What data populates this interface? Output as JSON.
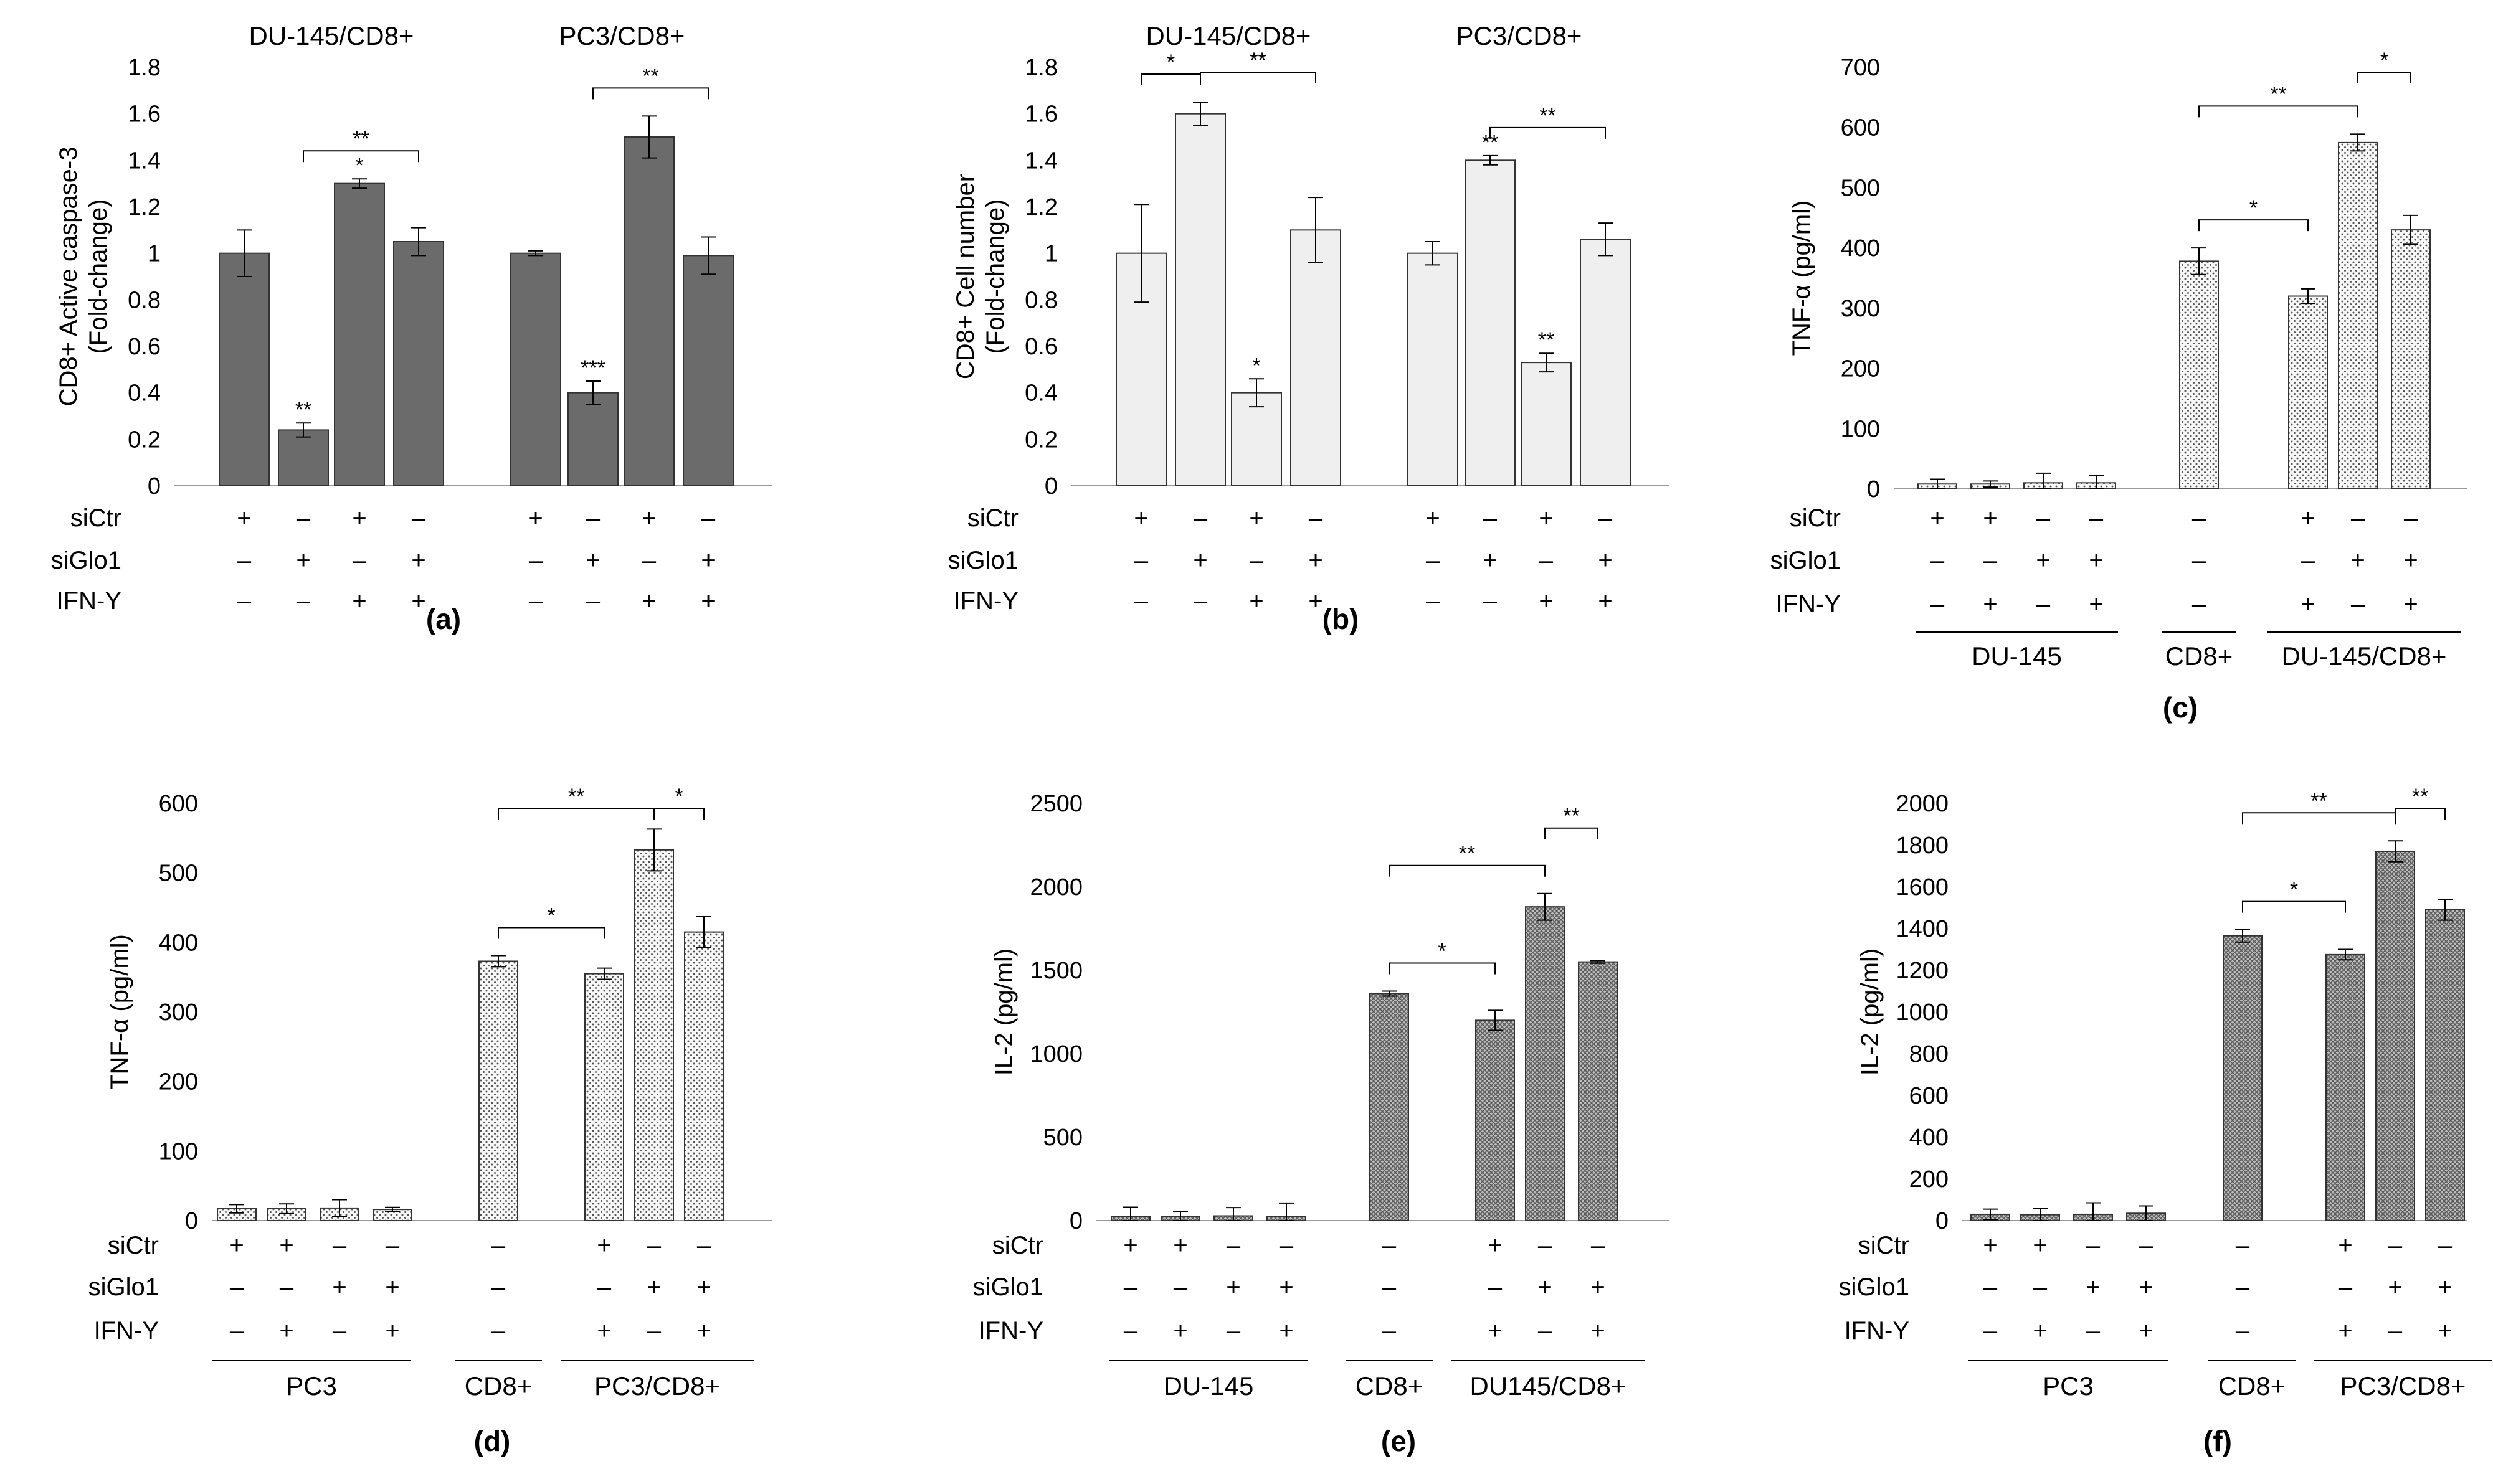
{
  "figure": {
    "panel_labels": [
      "(a)",
      "(b)",
      "(c)",
      "(d)",
      "(e)",
      "(f)"
    ],
    "row_labels": {
      "siCtr": "siCtr",
      "siGlo1": "siGlo1",
      "ifn": "IFN-Y"
    },
    "signs": {
      "plus": "+",
      "minus": "–"
    }
  },
  "colors": {
    "dark_gray": "#6b6b6b",
    "light_gray": "#efefef",
    "dotted_fill": "#f6f6f6",
    "dot_color": "#555555",
    "text": "#000000"
  },
  "chart_data": [
    {
      "panel": "(a)",
      "type": "bar",
      "ylabel": "CD8+ Active caspase-3\n(Fold-change)",
      "ylim": [
        0,
        1.8
      ],
      "yticks": [
        "0",
        "0.2",
        "0.4",
        "0.6",
        "0.8",
        "1",
        "1.2",
        "1.4",
        "1.6",
        "1.8"
      ],
      "style": "solid-dark",
      "group_titles": [
        "DU-145/CD8+",
        "PC3/CD8+"
      ],
      "group_labels": [],
      "categories": [
        "DU-145/CD8+ siCtr",
        "DU-145/CD8+ siGlo1",
        "DU-145/CD8+ siCtr+IFN-Y",
        "DU-145/CD8+ siGlo1+IFN-Y",
        "PC3/CD8+ siCtr",
        "PC3/CD8+ siGlo1",
        "PC3/CD8+ siCtr+IFN-Y",
        "PC3/CD8+ siGlo1+IFN-Y"
      ],
      "values": [
        1.0,
        0.24,
        1.3,
        1.05,
        1.0,
        0.4,
        1.5,
        0.99
      ],
      "errors": [
        0.1,
        0.03,
        0.02,
        0.06,
        0.01,
        0.05,
        0.09,
        0.08
      ],
      "bar_marks": [
        "",
        "**",
        "*",
        "",
        "",
        "***",
        "",
        ""
      ],
      "conditions": {
        "siCtr": [
          "+",
          "–",
          "+",
          "–",
          "+",
          "–",
          "+",
          "–"
        ],
        "siGlo1": [
          "–",
          "+",
          "–",
          "+",
          "–",
          "+",
          "–",
          "+"
        ],
        "ifn": [
          "–",
          "–",
          "+",
          "+",
          "–",
          "–",
          "+",
          "+"
        ]
      },
      "brackets": [
        {
          "from": 1,
          "to": 3,
          "label": "**"
        },
        {
          "from": 5,
          "to": 7,
          "label": "**"
        }
      ]
    },
    {
      "panel": "(b)",
      "type": "bar",
      "ylabel": "CD8+ Cell number\n(Fold-change)",
      "ylim": [
        0,
        1.8
      ],
      "yticks": [
        "0",
        "0.2",
        "0.4",
        "0.6",
        "0.8",
        "1",
        "1.2",
        "1.4",
        "1.6",
        "1.8"
      ],
      "style": "solid-light",
      "group_titles": [
        "DU-145/CD8+",
        "PC3/CD8+"
      ],
      "group_labels": [],
      "categories": [
        "DU-145/CD8+ siCtr",
        "DU-145/CD8+ siGlo1",
        "DU-145/CD8+ siCtr+IFN-Y",
        "DU-145/CD8+ siGlo1+IFN-Y",
        "PC3/CD8+ siCtr",
        "PC3/CD8+ siGlo1",
        "PC3/CD8+ siCtr+IFN-Y",
        "PC3/CD8+ siGlo1+IFN-Y"
      ],
      "values": [
        1.0,
        1.6,
        0.4,
        1.1,
        1.0,
        1.4,
        0.53,
        1.06
      ],
      "errors": [
        0.21,
        0.05,
        0.06,
        0.14,
        0.05,
        0.02,
        0.04,
        0.07
      ],
      "bar_marks": [
        "",
        "",
        "*",
        "",
        "",
        "**",
        "**",
        ""
      ],
      "conditions": {
        "siCtr": [
          "+",
          "–",
          "+",
          "–",
          "+",
          "–",
          "+",
          "–"
        ],
        "siGlo1": [
          "–",
          "+",
          "–",
          "+",
          "–",
          "+",
          "–",
          "+"
        ],
        "ifn": [
          "–",
          "–",
          "+",
          "+",
          "–",
          "–",
          "+",
          "+"
        ]
      },
      "brackets": [
        {
          "from": 0,
          "to": 1,
          "label": "*"
        },
        {
          "from": 1,
          "to": 3,
          "label": "**"
        },
        {
          "from": 5,
          "to": 7,
          "label": "**"
        }
      ]
    },
    {
      "panel": "(c)",
      "type": "bar",
      "ylabel": "TNF-α (pg/ml)",
      "ylim": [
        0,
        700
      ],
      "yticks": [
        "0",
        "100",
        "200",
        "300",
        "400",
        "500",
        "600",
        "700"
      ],
      "style": "dotted",
      "group_titles": [],
      "group_labels": [
        "DU-145",
        "CD8+",
        "DU-145/CD8+"
      ],
      "categories": [
        "DU-145 ctrl",
        "DU-145 IFN-Y",
        "DU-145 siGlo1",
        "DU-145 siGlo1+IFN-Y",
        "CD8+",
        "DU-145/CD8+ siCtr+IFN-Y",
        "DU-145/CD8+ siGlo1",
        "DU-145/CD8+ siGlo1+IFN-Y"
      ],
      "values": [
        8,
        8,
        10,
        10,
        378,
        320,
        575,
        430
      ],
      "errors": [
        8,
        5,
        16,
        12,
        22,
        12,
        14,
        24
      ],
      "bar_marks": [
        "",
        "",
        "",
        "",
        "",
        "",
        "",
        ""
      ],
      "conditions": {
        "siCtr": [
          "+",
          "+",
          "–",
          "–",
          "–",
          "+",
          "–",
          "–"
        ],
        "siGlo1": [
          "–",
          "–",
          "+",
          "+",
          "–",
          "–",
          "+",
          "+"
        ],
        "ifn": [
          "–",
          "+",
          "–",
          "+",
          "–",
          "+",
          "–",
          "+"
        ]
      },
      "brackets": [
        {
          "from": 4,
          "to": 5,
          "label": "*"
        },
        {
          "from": 4,
          "to": 6,
          "label": "**"
        },
        {
          "from": 6,
          "to": 7,
          "label": "*"
        }
      ]
    },
    {
      "panel": "(d)",
      "type": "bar",
      "ylabel": "TNF-α (pg/ml)",
      "ylim": [
        0,
        600
      ],
      "yticks": [
        "0",
        "100",
        "200",
        "300",
        "400",
        "500",
        "600"
      ],
      "style": "dotted",
      "group_titles": [],
      "group_labels": [
        "PC3",
        "CD8+",
        "PC3/CD8+"
      ],
      "categories": [
        "PC3 ctrl",
        "PC3 IFN-Y",
        "PC3 siGlo1",
        "PC3 siGlo1+IFN-Y",
        "CD8+",
        "PC3/CD8+ siCtr+IFN-Y",
        "PC3/CD8+ siGlo1",
        "PC3/CD8+ siGlo1+IFN-Y"
      ],
      "values": [
        17,
        17,
        18,
        16,
        373,
        355,
        533,
        415
      ],
      "errors": [
        6,
        7,
        12,
        3,
        8,
        8,
        30,
        22
      ],
      "bar_marks": [
        "",
        "",
        "",
        "",
        "",
        "",
        "",
        ""
      ],
      "conditions": {
        "siCtr": [
          "+",
          "+",
          "–",
          "–",
          "–",
          "+",
          "–",
          "–"
        ],
        "siGlo1": [
          "–",
          "–",
          "+",
          "+",
          "–",
          "–",
          "+",
          "+"
        ],
        "ifn": [
          "–",
          "+",
          "–",
          "+",
          "–",
          "+",
          "–",
          "+"
        ]
      },
      "brackets": [
        {
          "from": 4,
          "to": 5,
          "label": "*"
        },
        {
          "from": 4,
          "to": 6,
          "label": "**"
        },
        {
          "from": 6,
          "to": 7,
          "label": "*"
        }
      ]
    },
    {
      "panel": "(e)",
      "type": "bar",
      "ylabel": "IL-2 (pg/ml)",
      "ylim": [
        0,
        2500
      ],
      "yticks": [
        "0",
        "500",
        "1000",
        "1500",
        "2000",
        "2500"
      ],
      "style": "crosshatch",
      "group_titles": [],
      "group_labels": [
        "DU-145",
        "CD8+",
        "DU145/CD8+"
      ],
      "categories": [
        "DU-145 ctrl",
        "DU-145 IFN-Y",
        "DU-145 siGlo1",
        "DU-145 siGlo1+IFN-Y",
        "CD8+",
        "DU145/CD8+ siCtr+IFN-Y",
        "DU145/CD8+ siGlo1",
        "DU145/CD8+ siGlo1+IFN-Y"
      ],
      "values": [
        25,
        25,
        28,
        25,
        1360,
        1200,
        1880,
        1550
      ],
      "errors": [
        55,
        30,
        50,
        80,
        15,
        60,
        80,
        8
      ],
      "bar_marks": [
        "",
        "",
        "",
        "",
        "",
        "",
        "",
        ""
      ],
      "conditions": {
        "siCtr": [
          "+",
          "+",
          "–",
          "–",
          "–",
          "+",
          "–",
          "–"
        ],
        "siGlo1": [
          "–",
          "–",
          "+",
          "+",
          "–",
          "–",
          "+",
          "+"
        ],
        "ifn": [
          "–",
          "+",
          "–",
          "+",
          "–",
          "+",
          "–",
          "+"
        ]
      },
      "brackets": [
        {
          "from": 4,
          "to": 5,
          "label": "*"
        },
        {
          "from": 4,
          "to": 6,
          "label": "**"
        },
        {
          "from": 6,
          "to": 7,
          "label": "**"
        }
      ]
    },
    {
      "panel": "(f)",
      "type": "bar",
      "ylabel": "IL-2 (pg/ml)",
      "ylim": [
        0,
        2000
      ],
      "yticks": [
        "0",
        "200",
        "400",
        "600",
        "800",
        "1000",
        "1200",
        "1400",
        "1600",
        "1800",
        "2000"
      ],
      "style": "crosshatch",
      "group_titles": [],
      "group_labels": [
        "PC3",
        "CD8+",
        "PC3/CD8+"
      ],
      "categories": [
        "PC3 ctrl",
        "PC3 IFN-Y",
        "PC3 siGlo1",
        "PC3 siGlo1+IFN-Y",
        "CD8+",
        "PC3/CD8+ siCtr+IFN-Y",
        "PC3/CD8+ siGlo1",
        "PC3/CD8+ siGlo1+IFN-Y"
      ],
      "values": [
        30,
        28,
        30,
        35,
        1365,
        1275,
        1770,
        1490
      ],
      "errors": [
        25,
        30,
        55,
        35,
        30,
        25,
        50,
        50
      ],
      "bar_marks": [
        "",
        "",
        "",
        "",
        "",
        "",
        "",
        ""
      ],
      "conditions": {
        "siCtr": [
          "+",
          "+",
          "–",
          "–",
          "–",
          "+",
          "–",
          "–"
        ],
        "siGlo1": [
          "–",
          "–",
          "+",
          "+",
          "–",
          "–",
          "+",
          "+"
        ],
        "ifn": [
          "–",
          "+",
          "–",
          "+",
          "–",
          "+",
          "–",
          "+"
        ]
      },
      "brackets": [
        {
          "from": 4,
          "to": 5,
          "label": "*"
        },
        {
          "from": 4,
          "to": 6,
          "label": "**"
        },
        {
          "from": 6,
          "to": 7,
          "label": "**"
        }
      ]
    }
  ]
}
